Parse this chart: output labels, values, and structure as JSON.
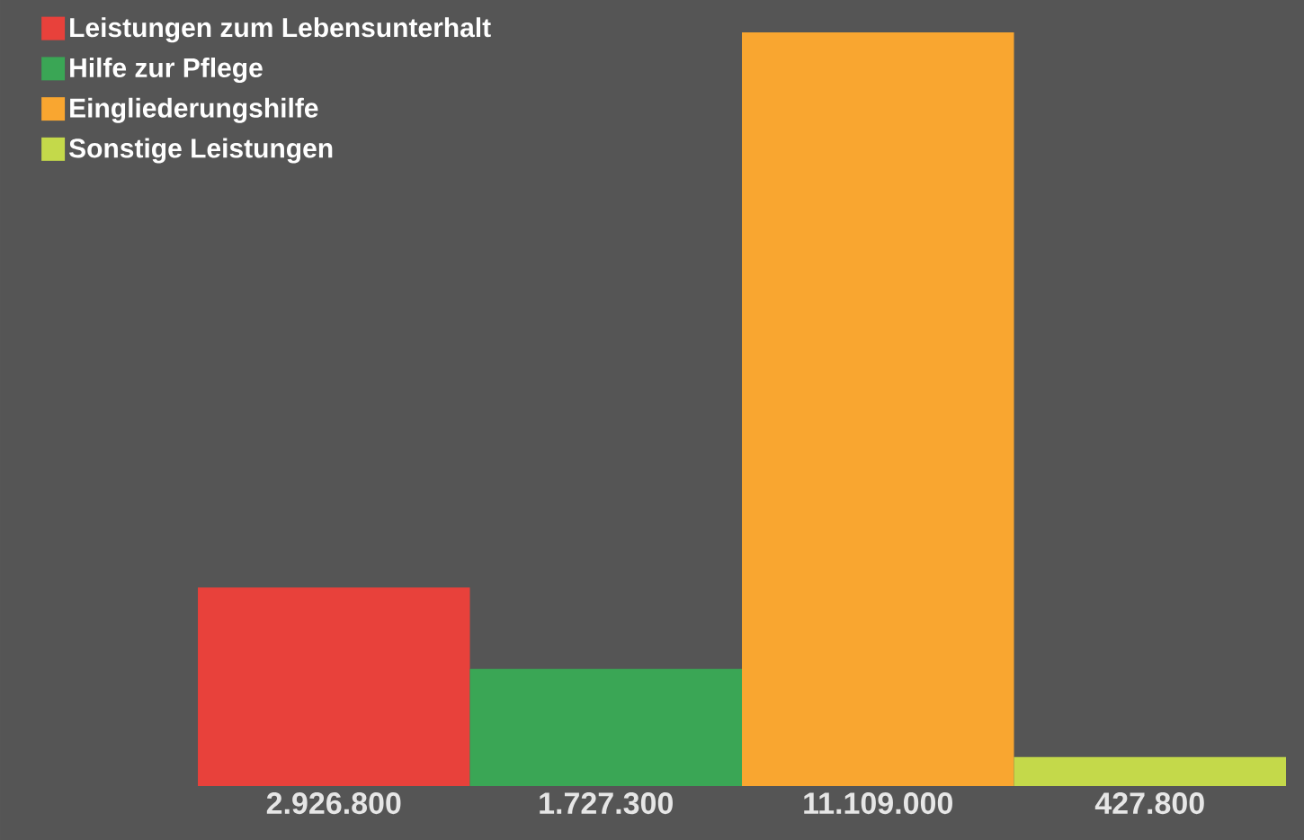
{
  "chart_data": {
    "type": "bar",
    "stacked": true,
    "categories": [
      null,
      null,
      null,
      null
    ],
    "legend": "top left",
    "series": [
      {
        "name": "Leistungen zum Lebensunterhalt",
        "color": "#e8413b",
        "values": [
          2926800,
          null,
          null,
          null
        ],
        "value_labels": [
          "2.926.800",
          null,
          null,
          null
        ]
      },
      {
        "name": "Hilfe zur Pflege",
        "color": "#3aa655",
        "values": [
          null,
          1727300,
          null,
          null
        ],
        "value_labels": [
          null,
          "1.727.300",
          null,
          null
        ]
      },
      {
        "name": "Eingliederungshilfe",
        "color": "#f9a630",
        "values": [
          null,
          null,
          11109000,
          null
        ],
        "value_labels": [
          null,
          null,
          "11.109.000",
          null
        ]
      },
      {
        "name": "Sonstige Leistungen",
        "color": "#c4d94a",
        "values": [
          null,
          null,
          null,
          427800
        ],
        "value_labels": [
          null,
          null,
          null,
          "427.800"
        ]
      }
    ]
  }
}
